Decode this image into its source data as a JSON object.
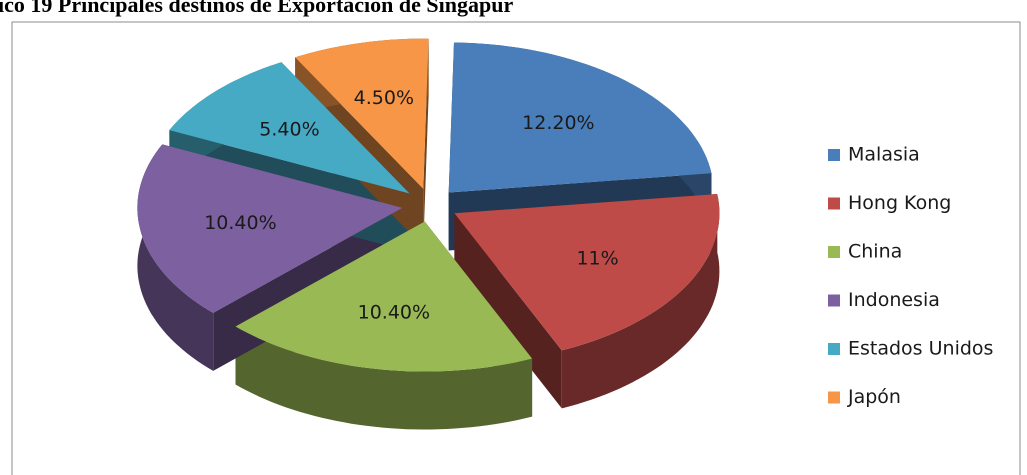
{
  "chart_data": {
    "type": "pie3d",
    "title": "ico 19 Principales destinos de Exportación de Singapur",
    "categories": [
      "Malasia",
      "Hong Kong",
      "China",
      "Indonesia",
      "Estados Unidos",
      "Japón"
    ],
    "values": [
      12.2,
      11,
      10.4,
      10.4,
      5.4,
      4.5
    ],
    "value_labels": [
      "12.20%",
      "11%",
      "10.40%",
      "10.40%",
      "5.40%",
      "4.50%"
    ],
    "colors": [
      "#4a7ebb",
      "#be4b48",
      "#98b954",
      "#7d60a0",
      "#46aac5",
      "#f79646"
    ],
    "legend": "right"
  }
}
